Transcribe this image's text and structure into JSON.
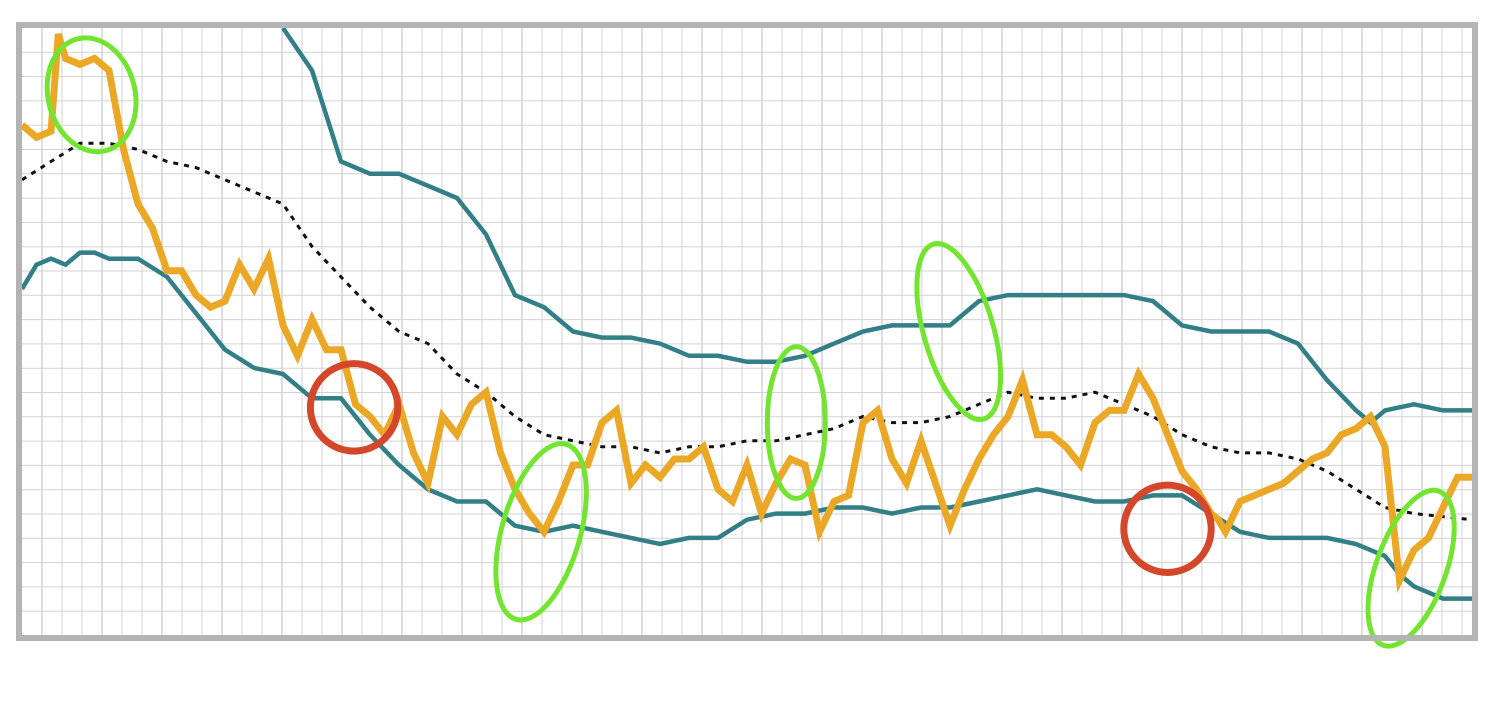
{
  "chart_data": {
    "type": "line",
    "title": "",
    "xlabel": "",
    "ylabel": "",
    "grid": true,
    "x_range": [
      0,
      100
    ],
    "y_range": [
      0,
      100
    ],
    "series": [
      {
        "key": "price",
        "color": "#EBA827",
        "points": [
          [
            0,
            84
          ],
          [
            1,
            82
          ],
          [
            2,
            83
          ],
          [
            2.5,
            99
          ],
          [
            3,
            95
          ],
          [
            4,
            94
          ],
          [
            5,
            95
          ],
          [
            6,
            93
          ],
          [
            7,
            80
          ],
          [
            8,
            71
          ],
          [
            9,
            67
          ],
          [
            10,
            60
          ],
          [
            11,
            60
          ],
          [
            12,
            56
          ],
          [
            13,
            54
          ],
          [
            14,
            55
          ],
          [
            15,
            61
          ],
          [
            16,
            57
          ],
          [
            17,
            62
          ],
          [
            18,
            51
          ],
          [
            19,
            46
          ],
          [
            20,
            52
          ],
          [
            21,
            47
          ],
          [
            22,
            47
          ],
          [
            23,
            38
          ],
          [
            24,
            36
          ],
          [
            25,
            33
          ],
          [
            26,
            38
          ],
          [
            27,
            30
          ],
          [
            28,
            25
          ],
          [
            29,
            36
          ],
          [
            30,
            33
          ],
          [
            31,
            38
          ],
          [
            32,
            40
          ],
          [
            33,
            30
          ],
          [
            34,
            24
          ],
          [
            35,
            20
          ],
          [
            36,
            17
          ],
          [
            37,
            22
          ],
          [
            38,
            28
          ],
          [
            39,
            28
          ],
          [
            40,
            35
          ],
          [
            41,
            37
          ],
          [
            42,
            25
          ],
          [
            43,
            28
          ],
          [
            44,
            26
          ],
          [
            45,
            29
          ],
          [
            46,
            29
          ],
          [
            47,
            31
          ],
          [
            48,
            24
          ],
          [
            49,
            22
          ],
          [
            50,
            28
          ],
          [
            51,
            20
          ],
          [
            52,
            25
          ],
          [
            53,
            29
          ],
          [
            54,
            28
          ],
          [
            55,
            17
          ],
          [
            56,
            22
          ],
          [
            57,
            23
          ],
          [
            58,
            35
          ],
          [
            59,
            37
          ],
          [
            60,
            29
          ],
          [
            61,
            25
          ],
          [
            62,
            32
          ],
          [
            63,
            25
          ],
          [
            64,
            18
          ],
          [
            65,
            24
          ],
          [
            66,
            29
          ],
          [
            67,
            33
          ],
          [
            68,
            36
          ],
          [
            69,
            42
          ],
          [
            70,
            33
          ],
          [
            71,
            33
          ],
          [
            72,
            31
          ],
          [
            73,
            28
          ],
          [
            74,
            35
          ],
          [
            75,
            37
          ],
          [
            76,
            37
          ],
          [
            77,
            43
          ],
          [
            78,
            39
          ],
          [
            79,
            33
          ],
          [
            80,
            27
          ],
          [
            81,
            24
          ],
          [
            82,
            20
          ],
          [
            82.5,
            19
          ],
          [
            83,
            17
          ],
          [
            84,
            22
          ],
          [
            85,
            23
          ],
          [
            86,
            24
          ],
          [
            87,
            25
          ],
          [
            88,
            27
          ],
          [
            89,
            29
          ],
          [
            90,
            30
          ],
          [
            91,
            33
          ],
          [
            92,
            34
          ],
          [
            93,
            36
          ],
          [
            94,
            31
          ],
          [
            95,
            9
          ],
          [
            96,
            14
          ],
          [
            97,
            16
          ],
          [
            98,
            21
          ],
          [
            99,
            26
          ],
          [
            100,
            26
          ]
        ]
      },
      {
        "key": "upper-band",
        "color": "#337F87",
        "points": [
          [
            18,
            100
          ],
          [
            20,
            93
          ],
          [
            22,
            78
          ],
          [
            24,
            76
          ],
          [
            26,
            76
          ],
          [
            28,
            74
          ],
          [
            30,
            72
          ],
          [
            32,
            66
          ],
          [
            34,
            56
          ],
          [
            36,
            54
          ],
          [
            38,
            50
          ],
          [
            40,
            49
          ],
          [
            42,
            49
          ],
          [
            44,
            48
          ],
          [
            46,
            46
          ],
          [
            48,
            46
          ],
          [
            50,
            45
          ],
          [
            52,
            45
          ],
          [
            54,
            46
          ],
          [
            56,
            48
          ],
          [
            58,
            50
          ],
          [
            60,
            51
          ],
          [
            62,
            51
          ],
          [
            64,
            51
          ],
          [
            66,
            55
          ],
          [
            68,
            56
          ],
          [
            70,
            56
          ],
          [
            72,
            56
          ],
          [
            74,
            56
          ],
          [
            76,
            56
          ],
          [
            78,
            55
          ],
          [
            80,
            51
          ],
          [
            82,
            50
          ],
          [
            84,
            50
          ],
          [
            86,
            50
          ],
          [
            88,
            48
          ],
          [
            90,
            42
          ],
          [
            92,
            37
          ],
          [
            93,
            35
          ],
          [
            94,
            37
          ],
          [
            96,
            38
          ],
          [
            98,
            37
          ],
          [
            100,
            37
          ]
        ]
      },
      {
        "key": "moving-average",
        "color": "#111111",
        "dashed": true,
        "points": [
          [
            0,
            75
          ],
          [
            2,
            78
          ],
          [
            4,
            81
          ],
          [
            6,
            81
          ],
          [
            8,
            80
          ],
          [
            10,
            78
          ],
          [
            12,
            77
          ],
          [
            14,
            75
          ],
          [
            16,
            73
          ],
          [
            18,
            71
          ],
          [
            20,
            64
          ],
          [
            22,
            59
          ],
          [
            24,
            54
          ],
          [
            26,
            50
          ],
          [
            28,
            48
          ],
          [
            30,
            43
          ],
          [
            32,
            40
          ],
          [
            34,
            36
          ],
          [
            36,
            33
          ],
          [
            38,
            32
          ],
          [
            40,
            31
          ],
          [
            42,
            31
          ],
          [
            44,
            30
          ],
          [
            46,
            31
          ],
          [
            48,
            31
          ],
          [
            50,
            32
          ],
          [
            52,
            32
          ],
          [
            54,
            33
          ],
          [
            56,
            34
          ],
          [
            58,
            36
          ],
          [
            60,
            35
          ],
          [
            62,
            35
          ],
          [
            64,
            36
          ],
          [
            66,
            38
          ],
          [
            68,
            40
          ],
          [
            70,
            39
          ],
          [
            72,
            39
          ],
          [
            74,
            40
          ],
          [
            76,
            38
          ],
          [
            78,
            36
          ],
          [
            80,
            33
          ],
          [
            82,
            31
          ],
          [
            84,
            30
          ],
          [
            86,
            30
          ],
          [
            88,
            29
          ],
          [
            90,
            27
          ],
          [
            92,
            24
          ],
          [
            94,
            21
          ],
          [
            96,
            20
          ],
          [
            100,
            19
          ]
        ]
      },
      {
        "key": "lower-band",
        "color": "#337F87",
        "points": [
          [
            0,
            57
          ],
          [
            1,
            61
          ],
          [
            2,
            62
          ],
          [
            3,
            61
          ],
          [
            4,
            63
          ],
          [
            5,
            63
          ],
          [
            6,
            62
          ],
          [
            8,
            62
          ],
          [
            10,
            59
          ],
          [
            12,
            53
          ],
          [
            14,
            47
          ],
          [
            16,
            44
          ],
          [
            18,
            43
          ],
          [
            20,
            39
          ],
          [
            22,
            39
          ],
          [
            24,
            33
          ],
          [
            26,
            28
          ],
          [
            28,
            24
          ],
          [
            30,
            22
          ],
          [
            32,
            22
          ],
          [
            34,
            18
          ],
          [
            36,
            17
          ],
          [
            38,
            18
          ],
          [
            40,
            17
          ],
          [
            42,
            16
          ],
          [
            44,
            15
          ],
          [
            46,
            16
          ],
          [
            48,
            16
          ],
          [
            50,
            19
          ],
          [
            52,
            20
          ],
          [
            54,
            20
          ],
          [
            56,
            21
          ],
          [
            58,
            21
          ],
          [
            60,
            20
          ],
          [
            62,
            21
          ],
          [
            64,
            21
          ],
          [
            66,
            22
          ],
          [
            68,
            23
          ],
          [
            70,
            24
          ],
          [
            72,
            23
          ],
          [
            74,
            22
          ],
          [
            76,
            22
          ],
          [
            78,
            23
          ],
          [
            80,
            23
          ],
          [
            82,
            20
          ],
          [
            84,
            17
          ],
          [
            86,
            16
          ],
          [
            88,
            16
          ],
          [
            90,
            16
          ],
          [
            92,
            15
          ],
          [
            94,
            13
          ],
          [
            95,
            10
          ],
          [
            96,
            8
          ],
          [
            98,
            6
          ],
          [
            99,
            6
          ],
          [
            100,
            6
          ]
        ]
      }
    ],
    "markers": [
      {
        "type": "ellipse",
        "color": "#73E530",
        "cx": 4.8,
        "cy": 89,
        "rx": 3.0,
        "ry": 9.5,
        "rot": -14
      },
      {
        "type": "ellipse",
        "color": "#73E530",
        "cx": 35.8,
        "cy": 17,
        "rx": 2.7,
        "ry": 15.0,
        "rot": 16
      },
      {
        "type": "ellipse",
        "color": "#73E530",
        "cx": 53.4,
        "cy": 35,
        "rx": 2.0,
        "ry": 12.5,
        "rot": 0
      },
      {
        "type": "ellipse",
        "color": "#73E530",
        "cx": 64.6,
        "cy": 50,
        "rx": 2.4,
        "ry": 15.0,
        "rot": -16
      },
      {
        "type": "ellipse",
        "color": "#73E530",
        "cx": 95.8,
        "cy": 11,
        "rx": 2.4,
        "ry": 13.5,
        "rot": 20
      },
      {
        "type": "circle",
        "color": "#D4472A",
        "cx": 22.9,
        "cy": 37.5,
        "r": 7.2
      },
      {
        "type": "circle",
        "color": "#D4472A",
        "cx": 79.0,
        "cy": 17.5,
        "r": 7.2
      }
    ]
  }
}
